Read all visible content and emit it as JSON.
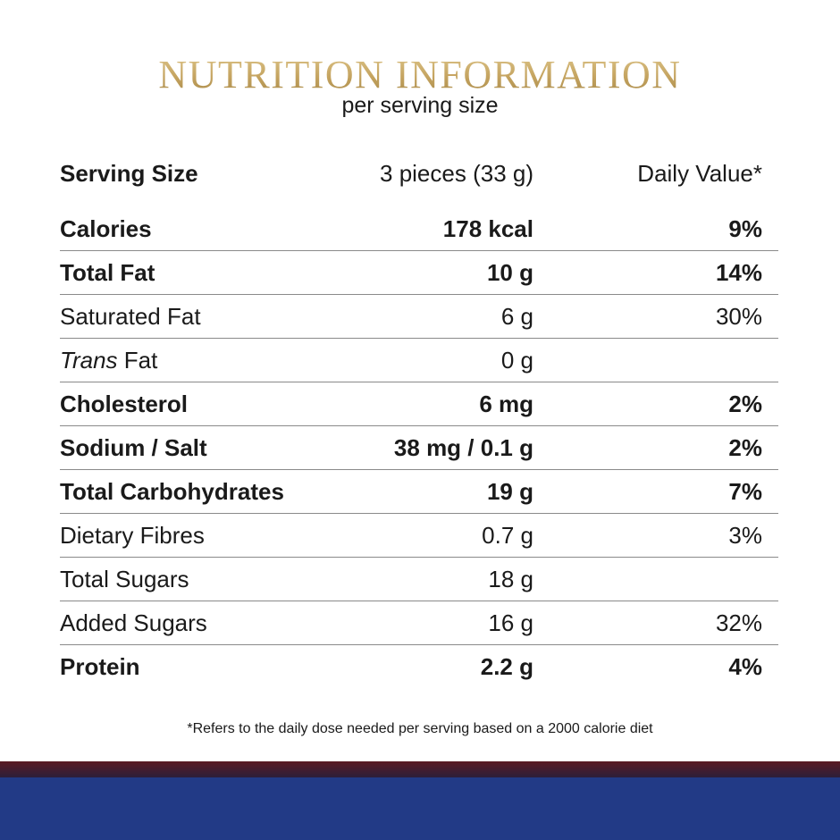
{
  "title": "NUTRITION INFORMATION",
  "subtitle": "per serving size",
  "header": {
    "label": "Serving Size",
    "amount": "3 pieces (33 g)",
    "dv": "Daily Value*"
  },
  "rows": [
    {
      "label": "Calories",
      "label_italic": "",
      "amount": "178 kcal",
      "dv": "9%"
    },
    {
      "label": "Total Fat",
      "label_italic": "",
      "amount": "10 g",
      "dv": "14%"
    },
    {
      "label": " Fat",
      "label_italic": "Trans",
      "amount": "",
      "dv": ""
    },
    {
      "label": "Saturated Fat",
      "label_italic": "",
      "amount": "6 g",
      "dv": "30%"
    },
    {
      "label": "Cholesterol",
      "label_italic": "",
      "amount": "6 mg",
      "dv": "2%"
    },
    {
      "label": "Sodium / Salt",
      "label_italic": "",
      "amount": "38 mg / 0.1 g",
      "dv": "2%"
    },
    {
      "label": "Total Carbohydrates",
      "label_italic": "",
      "amount": "19 g",
      "dv": "7%"
    },
    {
      "label": "Dietary Fibres",
      "label_italic": "",
      "amount": "0.7 g",
      "dv": "3%"
    },
    {
      "label": "Total Sugars",
      "label_italic": "",
      "amount": "18 g",
      "dv": ""
    },
    {
      "label": "Added Sugars",
      "label_italic": "",
      "amount": "16 g",
      "dv": "32%"
    },
    {
      "label": "Protein",
      "label_italic": "",
      "amount": "2.2 g",
      "dv": "4%"
    }
  ],
  "trans_fat_amount": "0 g",
  "footnote": "*Refers to the daily dose needed per serving based on a 2000 calorie diet",
  "colors": {
    "title_gold": "#c5a86a",
    "band_maroon": "#5a1a22",
    "band_blue": "#223a86",
    "divider": "#8a8a8a"
  }
}
